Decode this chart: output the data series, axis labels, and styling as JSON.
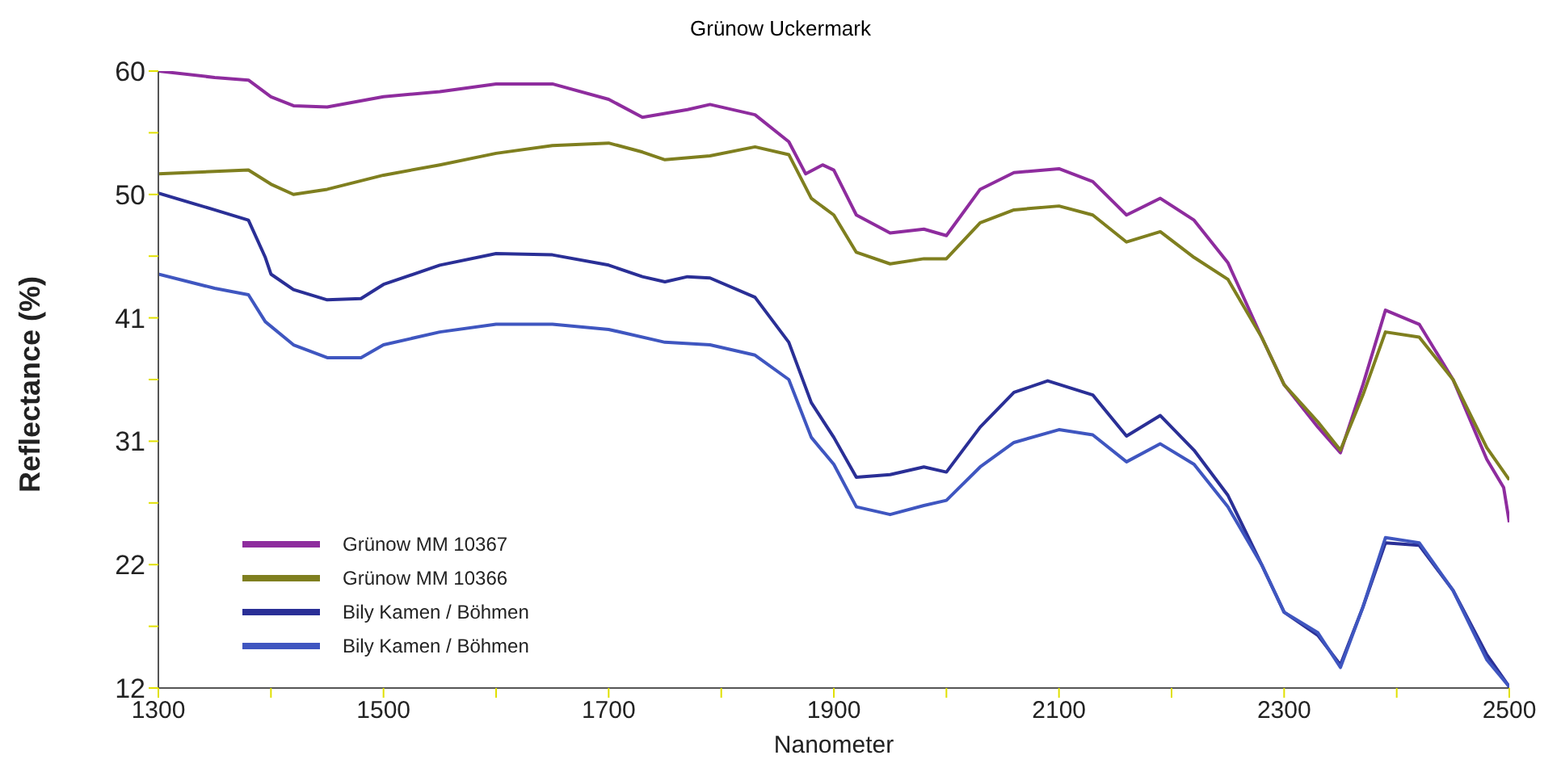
{
  "chart_data": {
    "type": "line",
    "title": "Grünow Uckermark",
    "xlabel": "Nanometer",
    "ylabel": "Reflectance (%)",
    "xlim": [
      1300,
      2500
    ],
    "xticks": [
      1300,
      {
        "value": 1400,
        "label": null
      },
      1500,
      {
        "value": 1600,
        "label": null
      },
      1700,
      {
        "value": 1800,
        "label": null
      },
      1900,
      {
        "value": 2000,
        "label": null
      },
      2100,
      {
        "value": 2200,
        "label": null
      },
      2300,
      {
        "value": 2400,
        "label": null
      },
      2500
    ],
    "ylim": [
      12,
      60
    ],
    "yticks": [
      {
        "value": 12,
        "label": "12"
      },
      {
        "value": 16.8,
        "label": null
      },
      {
        "value": 21.6,
        "label": "22"
      },
      {
        "value": 26.4,
        "label": null
      },
      {
        "value": 31.2,
        "label": "31"
      },
      {
        "value": 36,
        "label": null
      },
      {
        "value": 40.8,
        "label": "41"
      },
      {
        "value": 45.6,
        "label": null
      },
      {
        "value": 50.4,
        "label": "50"
      },
      {
        "value": 55.2,
        "label": null
      },
      {
        "value": 60,
        "label": "60"
      }
    ],
    "grid": false,
    "legend": "bottom left",
    "marker": "none",
    "line_style": "solid",
    "series": [
      {
        "name": "Grünow MM 10367",
        "color": "#8e2c9e",
        "x": [
          1300,
          1350,
          1380,
          1400,
          1420,
          1450,
          1500,
          1550,
          1600,
          1650,
          1700,
          1730,
          1750,
          1770,
          1790,
          1830,
          1860,
          1875,
          1890,
          1900,
          1920,
          1950,
          1980,
          2000,
          2030,
          2060,
          2100,
          2130,
          2160,
          2190,
          2220,
          2250,
          2280,
          2300,
          2330,
          2350,
          2370,
          2390,
          2420,
          2450,
          2480,
          2495,
          2500
        ],
        "values": [
          60.0,
          59.5,
          59.3,
          58.0,
          57.3,
          57.2,
          58.0,
          58.4,
          59.0,
          59.0,
          57.8,
          56.4,
          56.7,
          57.0,
          57.4,
          56.6,
          54.5,
          52.0,
          52.7,
          52.3,
          48.8,
          47.4,
          47.7,
          47.2,
          50.8,
          52.1,
          52.4,
          51.4,
          48.8,
          50.1,
          48.4,
          45.1,
          39.3,
          35.6,
          32.3,
          30.3,
          35.6,
          41.4,
          40.3,
          36.0,
          29.8,
          27.6,
          24.9
        ]
      },
      {
        "name": "Grünow MM 10366",
        "color": "#7f7f1f",
        "x": [
          1300,
          1380,
          1400,
          1420,
          1450,
          1500,
          1550,
          1600,
          1650,
          1700,
          1730,
          1750,
          1790,
          1830,
          1860,
          1880,
          1900,
          1920,
          1950,
          1980,
          2000,
          2030,
          2060,
          2100,
          2130,
          2160,
          2190,
          2220,
          2250,
          2280,
          2300,
          2330,
          2350,
          2370,
          2390,
          2420,
          2450,
          2480,
          2500
        ],
        "values": [
          52.0,
          52.3,
          51.2,
          50.4,
          50.8,
          51.9,
          52.7,
          53.6,
          54.2,
          54.4,
          53.7,
          53.1,
          53.4,
          54.1,
          53.5,
          50.1,
          48.8,
          45.9,
          45.0,
          45.4,
          45.4,
          48.2,
          49.2,
          49.5,
          48.8,
          46.7,
          47.5,
          45.5,
          43.8,
          39.3,
          35.6,
          32.7,
          30.5,
          34.8,
          39.7,
          39.3,
          36.0,
          30.7,
          28.2
        ]
      },
      {
        "name": "Bily Kamen / Böhmen",
        "color": "#2a2f96",
        "x": [
          1300,
          1350,
          1380,
          1395,
          1400,
          1420,
          1450,
          1480,
          1500,
          1550,
          1600,
          1650,
          1700,
          1730,
          1750,
          1770,
          1790,
          1830,
          1860,
          1880,
          1900,
          1920,
          1950,
          1980,
          2000,
          2030,
          2060,
          2090,
          2130,
          2160,
          2190,
          2220,
          2250,
          2280,
          2300,
          2330,
          2350,
          2370,
          2390,
          2420,
          2450,
          2480,
          2500
        ],
        "values": [
          50.5,
          49.2,
          48.4,
          45.5,
          44.2,
          43.0,
          42.2,
          42.3,
          43.4,
          44.9,
          45.8,
          45.7,
          44.9,
          44.0,
          43.6,
          44.0,
          43.9,
          42.4,
          38.9,
          34.2,
          31.5,
          28.4,
          28.6,
          29.2,
          28.8,
          32.3,
          35.0,
          35.9,
          34.8,
          31.6,
          33.2,
          30.5,
          27.0,
          21.6,
          17.9,
          16.1,
          13.8,
          18.3,
          23.3,
          23.1,
          19.6,
          14.6,
          12.1
        ]
      },
      {
        "name": "Bily Kamen / Böhmen",
        "color": "#3f56c0",
        "x": [
          1300,
          1350,
          1380,
          1395,
          1420,
          1450,
          1480,
          1500,
          1550,
          1600,
          1650,
          1700,
          1750,
          1790,
          1830,
          1860,
          1880,
          1900,
          1920,
          1950,
          1980,
          2000,
          2030,
          2060,
          2100,
          2130,
          2160,
          2190,
          2220,
          2250,
          2280,
          2300,
          2330,
          2350,
          2370,
          2390,
          2420,
          2450,
          2480,
          2500
        ],
        "values": [
          44.2,
          43.1,
          42.6,
          40.5,
          38.7,
          37.7,
          37.7,
          38.7,
          39.7,
          40.3,
          40.3,
          39.9,
          38.9,
          38.7,
          37.9,
          36.0,
          31.5,
          29.4,
          26.1,
          25.5,
          26.2,
          26.6,
          29.2,
          31.1,
          32.1,
          31.7,
          29.6,
          31.0,
          29.4,
          26.1,
          21.6,
          17.9,
          16.3,
          13.6,
          18.3,
          23.7,
          23.3,
          19.6,
          14.2,
          12.1
        ]
      }
    ]
  }
}
